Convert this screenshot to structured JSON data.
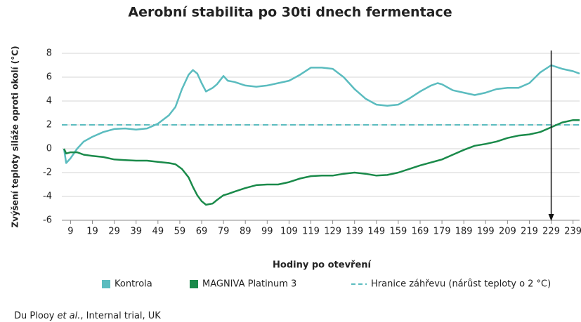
{
  "chart_data": {
    "type": "line",
    "title": "Aerobní stabilita po 30ti dnech fermentace",
    "xlabel": "Hodiny po otevření",
    "ylabel": "Zvýšení teploty siláže oproti okolí (°C)",
    "x": [
      6,
      7,
      9,
      12,
      15,
      19,
      24,
      29,
      34,
      39,
      44,
      49,
      54,
      57,
      60,
      63,
      65,
      67,
      69,
      71,
      74,
      76,
      79,
      81,
      84,
      89,
      94,
      99,
      104,
      109,
      114,
      119,
      124,
      129,
      134,
      139,
      144,
      149,
      154,
      159,
      164,
      169,
      174,
      177,
      179,
      184,
      189,
      194,
      199,
      204,
      209,
      214,
      219,
      224,
      229,
      234,
      239,
      242
    ],
    "series": [
      {
        "name": "Kontrola",
        "color": "#5bbcbf",
        "values": [
          0,
          -1.2,
          -0.8,
          0,
          0.6,
          1.0,
          1.4,
          1.65,
          1.7,
          1.6,
          1.7,
          2.1,
          2.8,
          3.5,
          5.0,
          6.2,
          6.6,
          6.3,
          5.5,
          4.8,
          5.1,
          5.4,
          6.1,
          5.7,
          5.6,
          5.3,
          5.2,
          5.3,
          5.5,
          5.7,
          6.2,
          6.8,
          6.8,
          6.7,
          6.0,
          5.0,
          4.2,
          3.7,
          3.6,
          3.7,
          4.2,
          4.8,
          5.3,
          5.5,
          5.4,
          4.9,
          4.7,
          4.5,
          4.7,
          5.0,
          5.1,
          5.1,
          5.5,
          6.4,
          7.0,
          6.7,
          6.5,
          6.3
        ]
      },
      {
        "name": "MAGNIVA Platinum 3",
        "color": "#1a8a4a",
        "values": [
          0,
          -0.4,
          -0.3,
          -0.3,
          -0.5,
          -0.6,
          -0.7,
          -0.9,
          -0.95,
          -1.0,
          -1.0,
          -1.1,
          -1.2,
          -1.3,
          -1.7,
          -2.4,
          -3.2,
          -3.9,
          -4.4,
          -4.7,
          -4.6,
          -4.3,
          -3.9,
          -3.8,
          -3.6,
          -3.3,
          -3.05,
          -3.0,
          -3.0,
          -2.8,
          -2.5,
          -2.3,
          -2.25,
          -2.25,
          -2.1,
          -2.0,
          -2.1,
          -2.25,
          -2.2,
          -2.0,
          -1.7,
          -1.4,
          -1.15,
          -1.0,
          -0.9,
          -0.5,
          -0.1,
          0.25,
          0.4,
          0.6,
          0.9,
          1.1,
          1.2,
          1.4,
          1.8,
          2.2,
          2.4,
          2.4
        ]
      }
    ],
    "threshold": {
      "value": 2,
      "name": "Hranice záhřevu (nárůst teploty o 2 °C)",
      "color": "#5bbcbf"
    },
    "marker_x": 229,
    "xlim": [
      5,
      242
    ],
    "xticks": [
      9,
      19,
      29,
      39,
      49,
      59,
      69,
      79,
      89,
      99,
      109,
      119,
      129,
      139,
      149,
      159,
      169,
      179,
      189,
      199,
      209,
      219,
      229,
      239
    ],
    "ylim": [
      -6,
      8
    ],
    "yticks": [
      -6,
      -4,
      -2,
      0,
      2,
      4,
      6,
      8
    ],
    "grid": true,
    "source": {
      "author": "Du Plooy",
      "etal": "et al.",
      "rest": ", Internal trial, UK"
    }
  }
}
